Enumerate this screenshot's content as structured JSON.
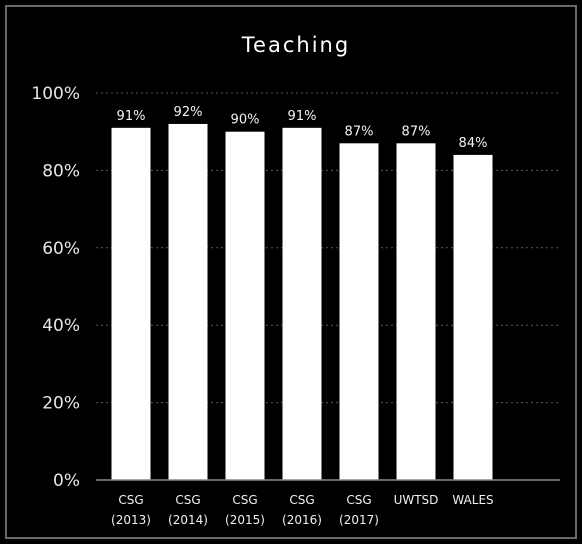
{
  "chart_data": {
    "type": "bar",
    "title": "Teaching",
    "categories": [
      [
        "CSG",
        "(2013)"
      ],
      [
        "CSG",
        "(2014)"
      ],
      [
        "CSG",
        "(2015)"
      ],
      [
        "CSG",
        "(2016)"
      ],
      [
        "CSG",
        "(2017)"
      ],
      [
        "UWTSD"
      ],
      [
        "WALES"
      ]
    ],
    "values": [
      91,
      92,
      90,
      91,
      87,
      87,
      84
    ],
    "data_labels": [
      "91%",
      "92%",
      "90%",
      "91%",
      "87%",
      "87%",
      "84%"
    ],
    "y_ticks": [
      0,
      20,
      40,
      60,
      80,
      100
    ],
    "y_tick_labels": [
      "0%",
      "20%",
      "40%",
      "60%",
      "80%",
      "100%"
    ],
    "ylim": [
      0,
      100
    ],
    "grid": true,
    "legend": "none",
    "colors": {
      "background": "#000000",
      "bar": "#ffffff",
      "text": "#ffffff"
    }
  }
}
